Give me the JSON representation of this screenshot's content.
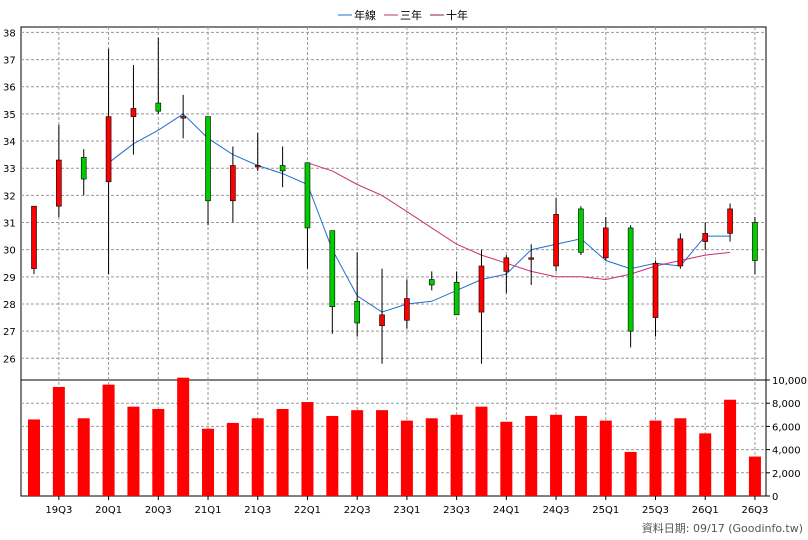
{
  "chart_data": {
    "type": "candlestick",
    "legend": [
      {
        "label": "年線",
        "color": "#1f6fd1"
      },
      {
        "label": "三年",
        "color": "#cc2f6e"
      },
      {
        "label": "十年",
        "color": "#8e1a52"
      }
    ],
    "colors": {
      "up": "#ff0000",
      "down": "#00cc00",
      "volume": "#ff0000",
      "grid": "#999999"
    },
    "x_tick_labels": [
      "19Q3",
      "20Q1",
      "20Q3",
      "21Q1",
      "21Q3",
      "22Q1",
      "22Q3",
      "23Q1",
      "23Q3",
      "24Q1",
      "24Q3",
      "25Q1",
      "25Q3",
      "26Q1",
      "26Q3"
    ],
    "price_axis": {
      "ticks": [
        "26",
        "27",
        "28",
        "29",
        "30",
        "31",
        "32",
        "33",
        "34",
        "35",
        "36",
        "37",
        "38"
      ],
      "ylim": [
        25.2,
        38.2
      ]
    },
    "volume_axis": {
      "ticks": [
        "0",
        "2,000",
        "4,000",
        "6,000",
        "8,000",
        "10,000"
      ],
      "ylim": [
        0,
        10000
      ]
    },
    "candles": [
      {
        "o": 29.3,
        "h": 31.6,
        "l": 29.1,
        "c": 31.6
      },
      {
        "o": 31.6,
        "h": 34.6,
        "l": 31.2,
        "c": 33.3
      },
      {
        "o": 33.4,
        "h": 33.7,
        "l": 32.0,
        "c": 32.6
      },
      {
        "o": 32.5,
        "h": 37.4,
        "l": 29.1,
        "c": 34.9
      },
      {
        "o": 34.9,
        "h": 36.8,
        "l": 33.5,
        "c": 35.2
      },
      {
        "o": 35.4,
        "h": 37.8,
        "l": 35.0,
        "c": 35.1
      },
      {
        "o": 34.9,
        "h": 35.7,
        "l": 34.1,
        "c": 34.9
      },
      {
        "o": 34.9,
        "h": 34.9,
        "l": 30.9,
        "c": 31.8
      },
      {
        "o": 31.8,
        "h": 33.8,
        "l": 31.0,
        "c": 33.1
      },
      {
        "o": 33.1,
        "h": 34.3,
        "l": 32.9,
        "c": 33.1
      },
      {
        "o": 33.1,
        "h": 33.8,
        "l": 32.3,
        "c": 32.9
      },
      {
        "o": 33.2,
        "h": 33.2,
        "l": 29.3,
        "c": 30.8
      },
      {
        "o": 30.7,
        "h": 30.7,
        "l": 26.9,
        "c": 27.9
      },
      {
        "o": 28.1,
        "h": 29.9,
        "l": 26.8,
        "c": 27.3
      },
      {
        "o": 27.2,
        "h": 29.3,
        "l": 25.8,
        "c": 27.6
      },
      {
        "o": 27.4,
        "h": 28.9,
        "l": 27.1,
        "c": 28.2
      },
      {
        "o": 28.9,
        "h": 29.2,
        "l": 28.5,
        "c": 28.7
      },
      {
        "o": 28.8,
        "h": 29.2,
        "l": 27.7,
        "c": 27.6
      },
      {
        "o": 27.7,
        "h": 30.0,
        "l": 25.8,
        "c": 29.4
      },
      {
        "o": 29.2,
        "h": 29.8,
        "l": 28.4,
        "c": 29.7
      },
      {
        "o": 29.7,
        "h": 30.2,
        "l": 28.7,
        "c": 29.7
      },
      {
        "o": 29.4,
        "h": 31.9,
        "l": 29.2,
        "c": 31.3
      },
      {
        "o": 31.5,
        "h": 31.6,
        "l": 29.8,
        "c": 29.9
      },
      {
        "o": 29.7,
        "h": 31.2,
        "l": 29.6,
        "c": 30.8
      },
      {
        "o": 30.8,
        "h": 30.9,
        "l": 26.4,
        "c": 27.0
      },
      {
        "o": 27.5,
        "h": 29.6,
        "l": 26.8,
        "c": 29.5
      },
      {
        "o": 29.4,
        "h": 30.6,
        "l": 29.3,
        "c": 30.4
      },
      {
        "o": 30.3,
        "h": 31.0,
        "l": 30.0,
        "c": 30.6
      },
      {
        "o": 30.6,
        "h": 31.7,
        "l": 30.3,
        "c": 31.5
      },
      {
        "o": 31.0,
        "h": 31.2,
        "l": 29.1,
        "c": 29.6
      }
    ],
    "series": [
      {
        "name": "年線",
        "values": [
          null,
          null,
          null,
          33.2,
          33.9,
          34.4,
          35.0,
          34.1,
          33.5,
          33.1,
          32.8,
          32.4,
          30.0,
          28.3,
          27.7,
          28.0,
          28.1,
          28.5,
          28.9,
          29.1,
          30.0,
          30.2,
          30.4,
          29.6,
          29.3,
          29.5,
          29.4,
          30.5,
          30.5,
          null
        ]
      },
      {
        "name": "三年",
        "values": [
          null,
          null,
          null,
          null,
          null,
          null,
          null,
          null,
          null,
          null,
          null,
          33.2,
          32.9,
          32.4,
          32.0,
          31.4,
          30.8,
          30.2,
          29.8,
          29.5,
          29.2,
          29.0,
          29.0,
          28.9,
          29.1,
          29.4,
          29.6,
          29.8,
          29.9,
          null
        ]
      }
    ],
    "volume": [
      6600,
      9400,
      6700,
      9600,
      7700,
      7500,
      10200,
      5800,
      6300,
      6700,
      7500,
      8100,
      6900,
      7400,
      7400,
      6500,
      6700,
      7000,
      7700,
      6400,
      6900,
      7000,
      6900,
      6500,
      3800,
      6500,
      6700,
      5400,
      8300,
      3400
    ]
  },
  "footer": "資料日期: 09/17  (Goodinfo.tw)"
}
